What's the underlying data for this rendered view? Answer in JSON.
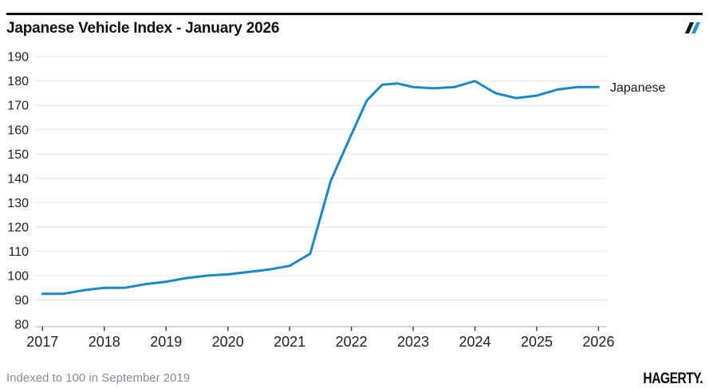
{
  "header": {
    "title": "Japanese Vehicle Index - January 2026"
  },
  "colors": {
    "line_blue": "#1a87c7",
    "mark_black": "#111111",
    "mark_blue": "#2596d3",
    "gridline": "#e4e4e4",
    "axis_line": "#c9c9c9",
    "tick_mark": "#444444",
    "tick_label": "#222222",
    "series_label": "#191919"
  },
  "chart_data": {
    "type": "line",
    "title": "Japanese Vehicle Index - January 2026",
    "note": "Indexed to 100 in September 2019",
    "grid": "horizontal",
    "legend_position": "right-of-line-end",
    "x_axis": {
      "ticks": [
        2017,
        2018,
        2019,
        2020,
        2021,
        2022,
        2023,
        2024,
        2025,
        2026
      ],
      "xlim": [
        2017,
        2026.15
      ]
    },
    "y_axis": {
      "ticks": [
        80,
        90,
        100,
        110,
        120,
        130,
        140,
        150,
        160,
        170,
        180,
        190
      ],
      "ylim": [
        80,
        190
      ]
    },
    "series": [
      {
        "name": "Japanese",
        "color": "#1a87c7",
        "points": [
          [
            "Jan 2017",
            2017.0,
            92.5
          ],
          [
            "May 2017",
            2017.333,
            92.5
          ],
          [
            "Sep 2017",
            2017.667,
            94
          ],
          [
            "Jan 2018",
            2018.0,
            95
          ],
          [
            "May 2018",
            2018.333,
            95
          ],
          [
            "Sep 2018",
            2018.667,
            96.5
          ],
          [
            "Jan 2019",
            2019.0,
            97.5
          ],
          [
            "May 2019",
            2019.333,
            99
          ],
          [
            "Sep 2019",
            2019.667,
            100
          ],
          [
            "Jan 2020",
            2020.0,
            100.5
          ],
          [
            "May 2020",
            2020.333,
            101.5
          ],
          [
            "Sep 2020",
            2020.667,
            102.5
          ],
          [
            "Jan 2021",
            2021.0,
            104
          ],
          [
            "May 2021",
            2021.333,
            109
          ],
          [
            "Sep 2021",
            2021.667,
            139
          ],
          [
            "Jan 2022",
            2022.0,
            158
          ],
          [
            "Apr 2022",
            2022.25,
            172
          ],
          [
            "Jul 2022",
            2022.5,
            178.5
          ],
          [
            "Oct 2022",
            2022.75,
            179
          ],
          [
            "Jan 2023",
            2023.0,
            177.5
          ],
          [
            "May 2023",
            2023.333,
            177
          ],
          [
            "Sep 2023",
            2023.667,
            177.5
          ],
          [
            "Jan 2024",
            2024.0,
            180
          ],
          [
            "May 2024",
            2024.333,
            175
          ],
          [
            "Sep 2024",
            2024.667,
            173
          ],
          [
            "Jan 2025",
            2025.0,
            174
          ],
          [
            "May 2025",
            2025.333,
            176.5
          ],
          [
            "Sep 2025",
            2025.667,
            177.5
          ],
          [
            "Jan 2026",
            2026.0,
            177.5
          ]
        ]
      }
    ]
  },
  "footer": {
    "note": "Indexed to 100 in September 2019",
    "brand": "HAGERTY."
  }
}
